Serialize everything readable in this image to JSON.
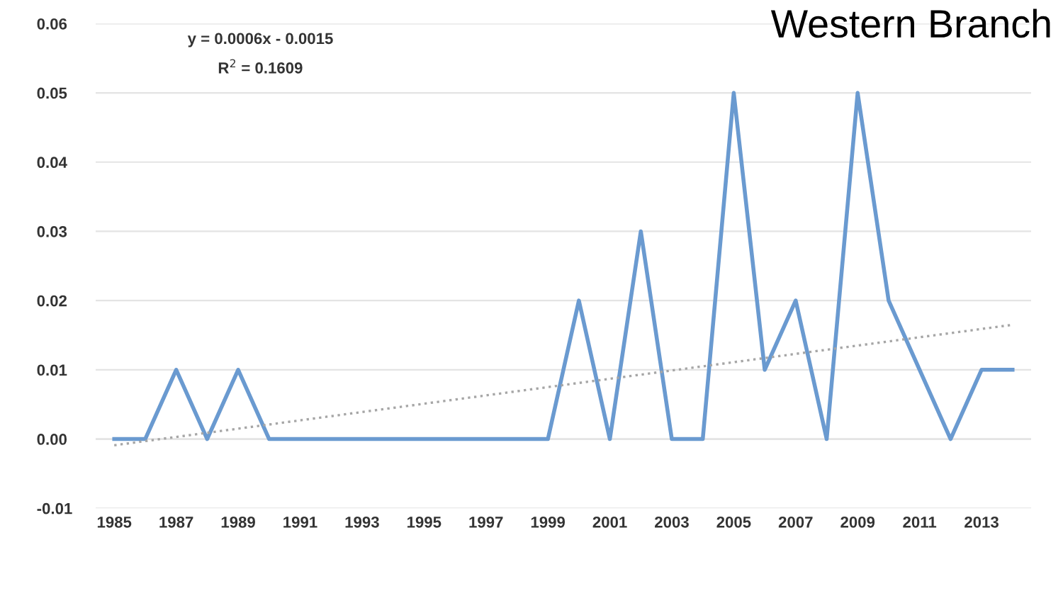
{
  "chart_data": {
    "type": "line",
    "title": "Western Branch",
    "categories": [
      "1985",
      null,
      "1987",
      null,
      "1989",
      null,
      "1991",
      null,
      "1993",
      null,
      "1995",
      null,
      "1997",
      null,
      "1999",
      null,
      "2001",
      null,
      "2003",
      null,
      "2005",
      null,
      "2007",
      null,
      "2009",
      null,
      "2011",
      null,
      "2013",
      null
    ],
    "series": [
      {
        "color": "#6a9ad0",
        "line_style": "solid",
        "values": [
          0,
          0,
          0.01,
          0,
          0.01,
          0,
          0,
          0,
          0,
          0,
          0,
          0,
          0,
          0,
          0,
          0.02,
          0,
          0.03,
          0,
          0,
          0.05,
          0.01,
          0.02,
          0,
          0.05,
          0.02,
          0.01,
          0,
          0.01,
          0.01
        ]
      },
      {
        "color": "#a6a6a6",
        "line_style": "dotted",
        "values": [
          -0.0009,
          -0.0003,
          0.0003,
          0.0009,
          0.0015,
          0.0021,
          0.0027,
          0.0033,
          0.0039,
          0.0045,
          0.0051,
          0.0057,
          0.0063,
          0.0069,
          0.0075,
          0.0081,
          0.0087,
          0.0093,
          0.0099,
          0.0105,
          0.0111,
          0.0117,
          0.0123,
          0.0129,
          0.0135,
          0.0141,
          0.0147,
          0.0153,
          0.0159,
          0.0165
        ]
      }
    ],
    "ylim": [
      -0.01,
      0.06
    ],
    "yticks": [
      {
        "value": -0.01,
        "label": "-0.01"
      },
      {
        "value": 0,
        "label": "0.00"
      },
      {
        "value": 0.01,
        "label": "0.01"
      },
      {
        "value": 0.02,
        "label": "0.02"
      },
      {
        "value": 0.03,
        "label": "0.03"
      },
      {
        "value": 0.04,
        "label": "0.04"
      },
      {
        "value": 0.05,
        "label": "0.05"
      },
      {
        "value": 0.06,
        "label": "0.06"
      }
    ],
    "grid": "y",
    "annotations": [
      "y = 0.0006x - 0.0015",
      "R$^{2}$ = 0.1609"
    ]
  }
}
